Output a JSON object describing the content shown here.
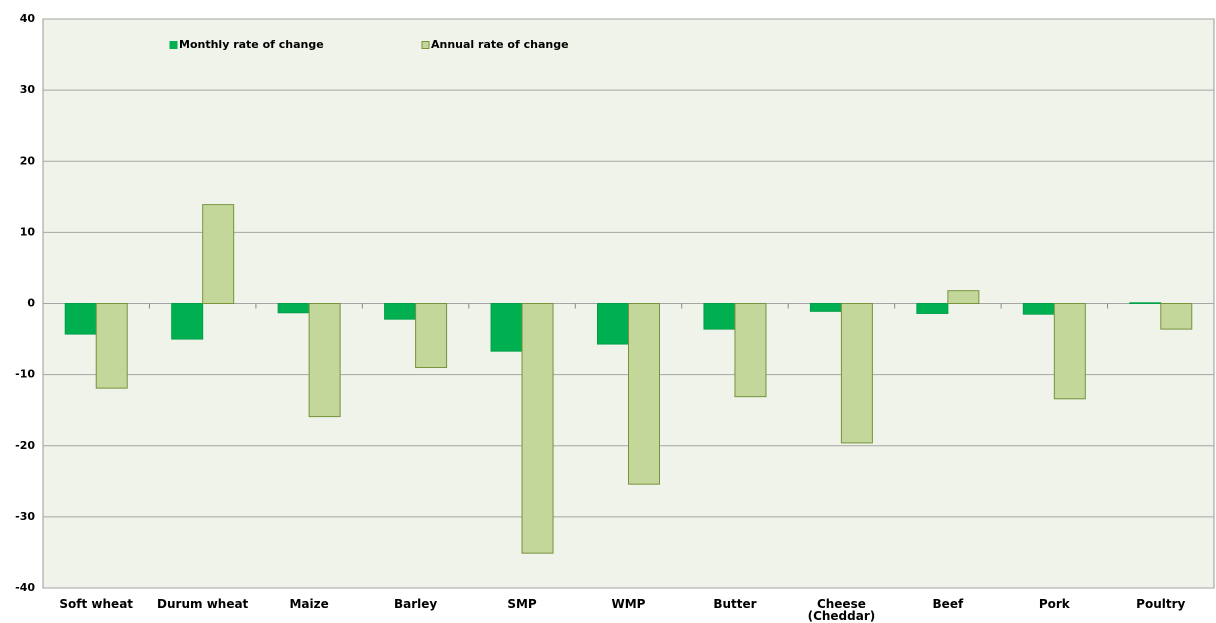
{
  "chart_data": {
    "type": "bar",
    "categories": [
      "Soft wheat",
      "Durum wheat",
      "Maize",
      "Barley",
      "SMP",
      "WMP",
      "Butter",
      "Cheese (Cheddar)",
      "Beef",
      "Pork",
      "Poultry"
    ],
    "series": [
      {
        "name": "Monthly rate of change",
        "color": "#00b050",
        "values": [
          -4.3,
          -5.0,
          -1.3,
          -2.2,
          -6.7,
          -5.7,
          -3.6,
          -1.1,
          -1.4,
          -1.5,
          0.1
        ]
      },
      {
        "name": "Annual rate of change",
        "color": "#c4d79b",
        "values": [
          -11.9,
          13.9,
          -15.9,
          -9.0,
          -35.1,
          -25.4,
          -13.1,
          -19.6,
          1.8,
          -13.4,
          -3.6
        ]
      }
    ],
    "ylim": [
      -40,
      40
    ],
    "yticks": [
      -40,
      -30,
      -20,
      -10,
      0,
      10,
      20,
      30,
      40
    ],
    "grid": true,
    "legend": "top"
  }
}
